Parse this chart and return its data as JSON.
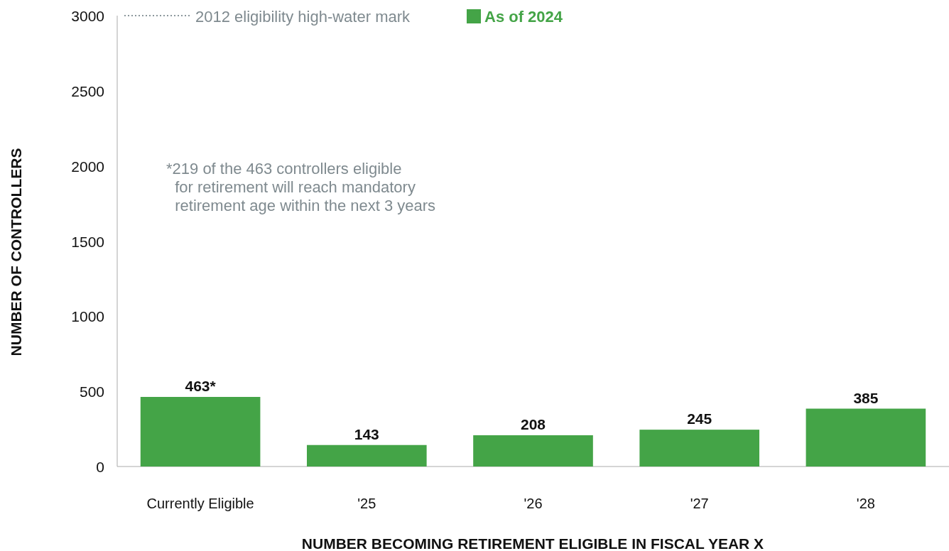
{
  "chart_data": {
    "type": "bar",
    "xlabel": "NUMBER BECOMING RETIREMENT ELIGIBLE IN FISCAL YEAR X",
    "ylabel": "NUMBER OF CONTROLLERS",
    "categories": [
      "Currently Eligible",
      "'25",
      "'26",
      "'27",
      "'28"
    ],
    "series": [
      {
        "name": "2012 eligibility high-water mark",
        "type": "line",
        "color": "#8c979c",
        "line_style": "dotted",
        "values": [
          null,
          null,
          null,
          null,
          null
        ]
      },
      {
        "name": "As of 2024",
        "color": "#44a447",
        "values": [
          463,
          143,
          208,
          245,
          385
        ],
        "value_labels": [
          "463*",
          "143",
          "208",
          "245",
          "385"
        ]
      }
    ],
    "ylim": [
      0,
      3000
    ],
    "yticks": [
      0,
      500,
      1000,
      1500,
      2000,
      2500,
      3000
    ],
    "grid": false,
    "legend": "top",
    "annotations": [
      "*219 of the 463 controllers eligible\n  for retirement will reach mandatory\n  retirement age within the next 3 years"
    ]
  }
}
